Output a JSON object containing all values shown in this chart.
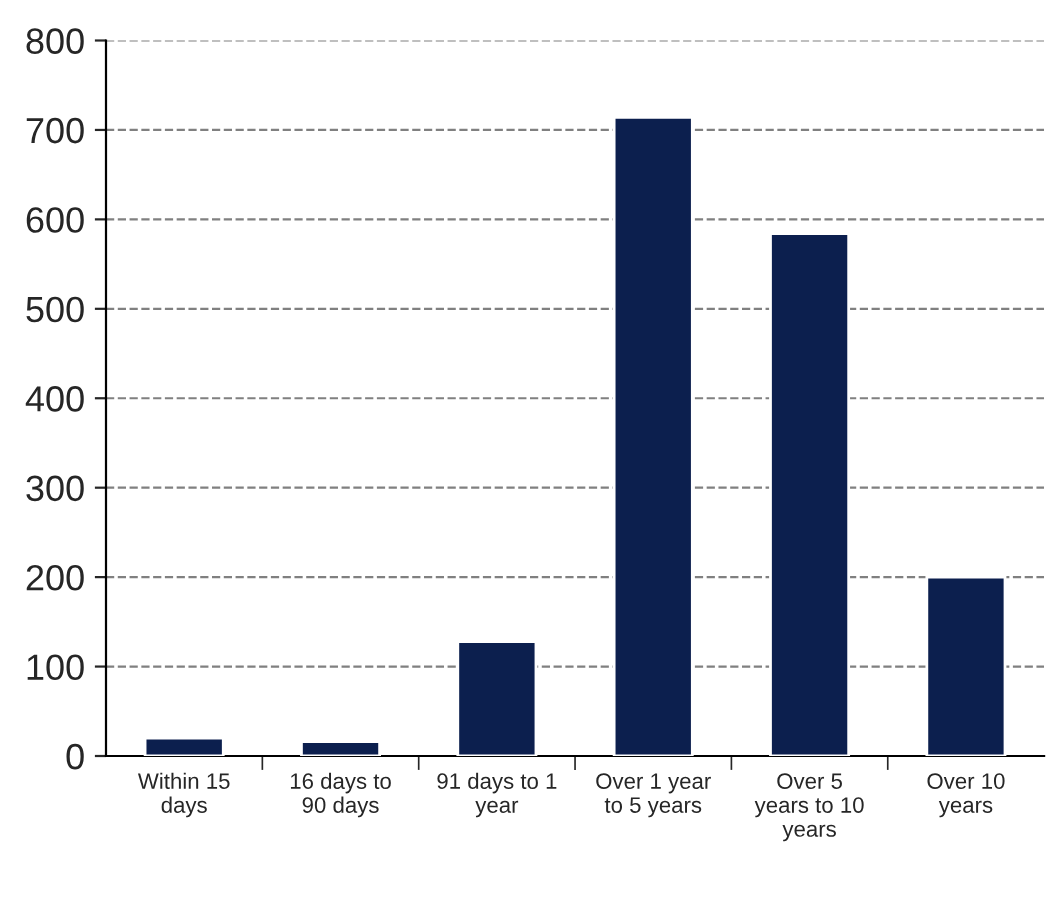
{
  "chart_data": {
    "type": "bar",
    "categories": [
      "Within 15\ndays",
      "16 days to\n90 days",
      "91 days to 1\nyear",
      "Over 1 year\nto 5 years",
      "Over 5\nyears to 10\nyears",
      "Over 10\nyears"
    ],
    "values": [
      20,
      16,
      128,
      714,
      584,
      200
    ],
    "color": "#0c1f4e",
    "ylim": [
      0,
      800
    ],
    "yticks": [
      0,
      100,
      200,
      300,
      400,
      500,
      600,
      700,
      800
    ],
    "grid": "y"
  }
}
